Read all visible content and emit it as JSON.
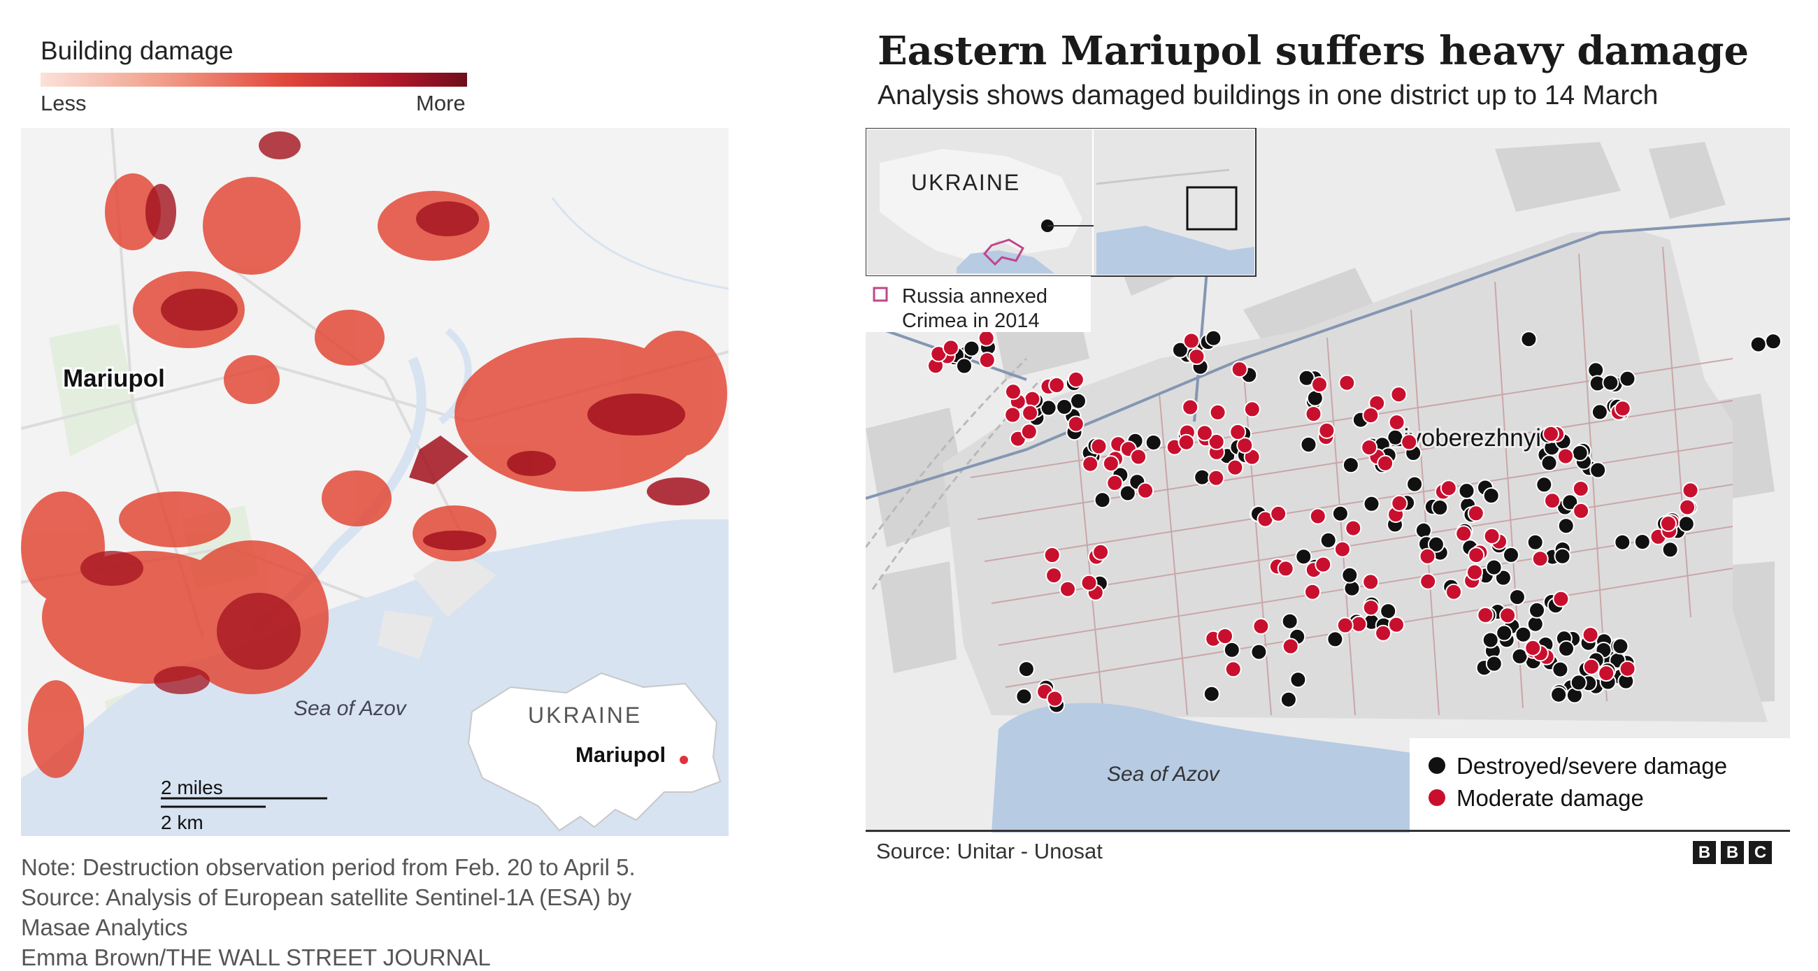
{
  "left": {
    "legend": {
      "title": "Building damage",
      "less": "Less",
      "more": "More"
    },
    "city_label": "Mariupol",
    "sea_label": "Sea of Azov",
    "scale": {
      "miles": "2 miles",
      "km": "2 km"
    },
    "inset": {
      "country": "UKRAINE",
      "city": "Mariupol"
    },
    "notes": [
      "Note: Destruction observation period from Feb. 20 to April 5.",
      "Source: Analysis of European satellite Sentinel-1A (ESA) by",
      "Masae Analytics",
      "Emma Brown/THE WALL STREET JOURNAL"
    ]
  },
  "right": {
    "title": "Eastern Mariupol suffers heavy damage",
    "subtitle": "Analysis shows damaged buildings in one district up to 14 March",
    "inset": {
      "country": "UKRAINE",
      "crimea_note_1": "Russia annexed",
      "crimea_note_2": "Crimea in 2014"
    },
    "district_label": "Livoberezhnyi",
    "sea_label": "Sea of Azov",
    "legend": {
      "destroyed": "Destroyed/severe damage",
      "moderate": "Moderate damage"
    },
    "source": "Source: Unitar - Unosat",
    "logo": [
      "B",
      "B",
      "C"
    ]
  },
  "colors": {
    "destroyed": "#111111",
    "moderate": "#c8102e",
    "sea": "#d7e3f1",
    "damage_dark": "#a3121e",
    "damage_light": "#ee5a46",
    "crimea_outline": "#c0468a"
  }
}
